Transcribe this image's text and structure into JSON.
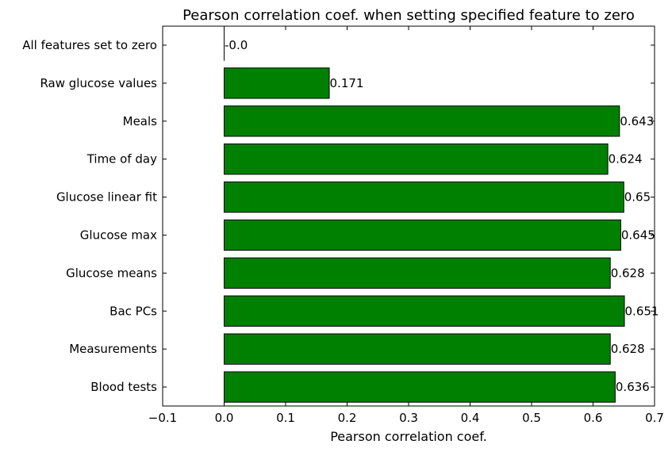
{
  "chart_data": {
    "type": "bar",
    "orientation": "horizontal",
    "title": "Pearson correlation coef. when setting specified feature to zero",
    "xlabel": "Pearson correlation coef.",
    "ylabel": "",
    "xlim": [
      -0.1,
      0.7
    ],
    "xticks": [
      -0.1,
      0.0,
      0.1,
      0.2,
      0.3,
      0.4,
      0.5,
      0.6,
      0.7
    ],
    "xtick_labels": [
      "−0.1",
      "0.0",
      "0.1",
      "0.2",
      "0.3",
      "0.4",
      "0.5",
      "0.6",
      "0.7"
    ],
    "categories": [
      "All features set to zero",
      "Raw glucose values",
      "Meals",
      "Time of day",
      "Glucose linear fit",
      "Glucose max",
      "Glucose means",
      "Bac PCs",
      "Measurements",
      "Blood tests"
    ],
    "values": [
      -0.0,
      0.171,
      0.643,
      0.624,
      0.65,
      0.645,
      0.628,
      0.651,
      0.628,
      0.636
    ],
    "value_labels": [
      "-0.0",
      "0.171",
      "0.643",
      "0.624",
      "0.65",
      "0.645",
      "0.628",
      "0.651",
      "0.628",
      "0.636"
    ],
    "bar_color": "#008000",
    "grid": false,
    "legend": "none"
  }
}
